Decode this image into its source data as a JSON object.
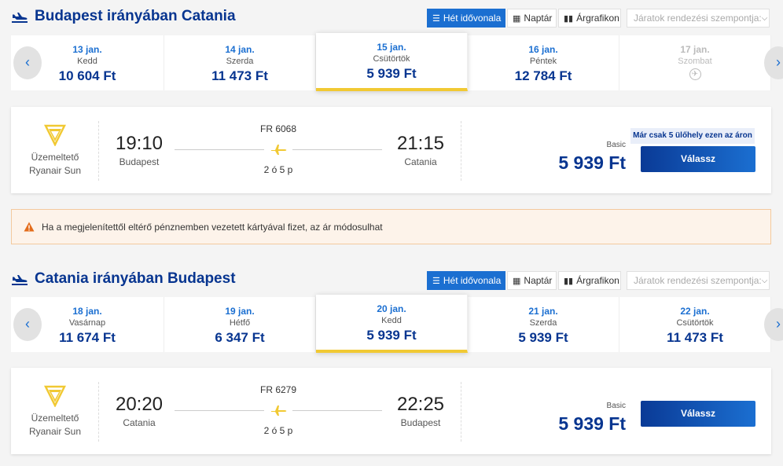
{
  "view_buttons": {
    "week": "Hét idővonala",
    "calendar": "Naptár",
    "price_chart": "Árgrafikon"
  },
  "sort_placeholder": "Járatok rendezési szempontja:",
  "outbound": {
    "title": "Budapest irányában Catania",
    "dates": [
      {
        "date": "13 jan.",
        "weekday": "Kedd",
        "price": "10 604 Ft"
      },
      {
        "date": "14 jan.",
        "weekday": "Szerda",
        "price": "11 473 Ft"
      },
      {
        "date": "15 jan.",
        "weekday": "Csütörtök",
        "price": "5 939 Ft",
        "selected": true
      },
      {
        "date": "16 jan.",
        "weekday": "Péntek",
        "price": "12 784 Ft"
      },
      {
        "date": "17 jan.",
        "weekday": "Szombat",
        "price": "",
        "no_flight": true
      }
    ],
    "flight": {
      "operator_label": "Üzemeltető",
      "operator_name": "Ryanair Sun",
      "flight_number": "FR 6068",
      "depart_time": "19:10",
      "depart_city": "Budapest",
      "arrive_time": "21:15",
      "arrive_city": "Catania",
      "duration": "2 ó 5 p",
      "fare_type": "Basic",
      "price": "5 939 Ft",
      "seats_badge": "Már csak 5 ülőhely ezen az áron",
      "select_label": "Válassz"
    }
  },
  "warning_text": "Ha a megjelenítettől eltérő pénznemben vezetett kártyával fizet, az ár módosulhat",
  "return": {
    "title": "Catania irányában Budapest",
    "dates": [
      {
        "date": "18 jan.",
        "weekday": "Vasárnap",
        "price": "11 674 Ft"
      },
      {
        "date": "19 jan.",
        "weekday": "Hétfő",
        "price": "6 347 Ft"
      },
      {
        "date": "20 jan.",
        "weekday": "Kedd",
        "price": "5 939 Ft",
        "selected": true
      },
      {
        "date": "21 jan.",
        "weekday": "Szerda",
        "price": "5 939 Ft"
      },
      {
        "date": "22 jan.",
        "weekday": "Csütörtök",
        "price": "11 473 Ft"
      }
    ],
    "flight": {
      "operator_label": "Üzemeltető",
      "operator_name": "Ryanair Sun",
      "flight_number": "FR 6279",
      "depart_time": "20:20",
      "depart_city": "Catania",
      "arrive_time": "22:25",
      "arrive_city": "Budapest",
      "duration": "2 ó 5 p",
      "fare_type": "Basic",
      "price": "5 939 Ft",
      "select_label": "Válassz"
    }
  },
  "icons": {
    "plane": "plane-icon",
    "calendar": "calendar-icon",
    "bars": "bar-chart-icon",
    "list": "list-icon",
    "warning": "warning-icon",
    "no_flight": "no-flight-icon",
    "chevron_left": "chevron-left-icon",
    "chevron_right": "chevron-right-icon"
  },
  "colors": {
    "brand_blue": "#073590",
    "accent_blue": "#1b6fd1",
    "accent_yellow": "#f1c933",
    "warning_orange": "#e36c1b"
  }
}
